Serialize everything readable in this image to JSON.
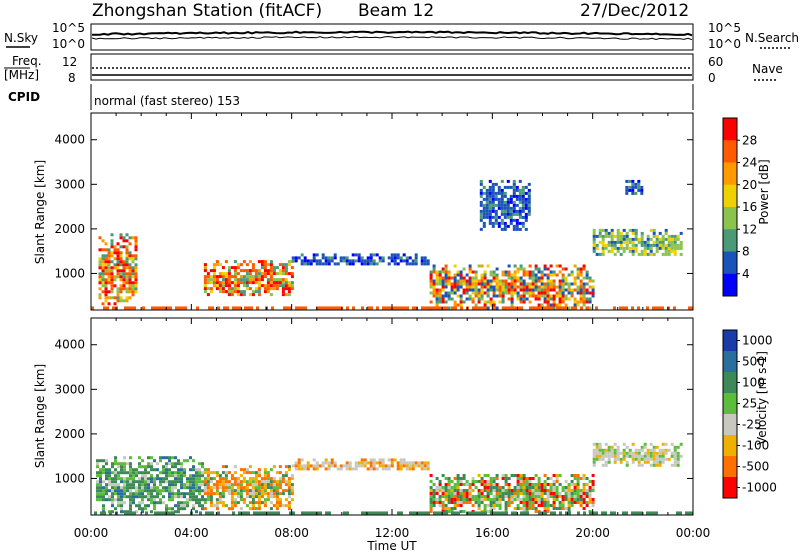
{
  "header": {
    "station": "Zhongshan Station (fitACF)",
    "beam": "Beam 12",
    "date": "27/Dec/2012"
  },
  "noise_panel": {
    "left_label": "N.Sky",
    "right_label": "N.Search",
    "left_ticks": [
      "10^5",
      "10^0"
    ],
    "right_ticks": [
      "10^5",
      "10^0"
    ]
  },
  "freq_panel": {
    "left_label_1": "Freq.",
    "left_label_2": "[MHz]",
    "right_label": "Nave",
    "left_ticks": [
      "12",
      "8"
    ],
    "right_ticks": [
      "60",
      "0"
    ]
  },
  "cpid_panel": {
    "label": "CPID",
    "text": "normal (fast stereo) 153"
  },
  "x_axis": {
    "label": "Time UT",
    "ticks": [
      "00:00",
      "04:00",
      "08:00",
      "12:00",
      "16:00",
      "20:00",
      "00:00"
    ]
  },
  "power_panel": {
    "ylabel": "Slant Range [km]",
    "yticks": [
      "1000",
      "2000",
      "3000",
      "4000"
    ],
    "colorbar_label": "Power [dB]",
    "colorbar_ticks": [
      "4",
      "8",
      "12",
      "16",
      "20",
      "24",
      "28"
    ]
  },
  "velocity_panel": {
    "ylabel": "Slant Range [km]",
    "yticks": [
      "1000",
      "2000",
      "3000",
      "4000"
    ],
    "colorbar_label": "Velocity [m s-1]",
    "colorbar_ticks": [
      "1000",
      "500",
      "100",
      "25",
      "-25",
      "-100",
      "-500",
      "-1000"
    ]
  },
  "chart_data": [
    {
      "type": "heatmap",
      "title": "Power",
      "xlabel": "Time UT",
      "ylabel": "Slant Range [km]",
      "xlim": [
        0,
        24
      ],
      "ylim": [
        180,
        4600
      ],
      "colorbar_label": "Power [dB]",
      "colorbar_ticks": [
        4,
        8,
        12,
        16,
        20,
        24,
        28
      ],
      "colors": [
        "#0000ff",
        "#1a54b8",
        "#4a9a78",
        "#8cc24e",
        "#f0d000",
        "#ff9a00",
        "#ff5a00",
        "#ff0000"
      ],
      "regions": [
        {
          "t": [
            0.3,
            1.8
          ],
          "r": [
            300,
            1900
          ],
          "level": "high"
        },
        {
          "t": [
            4.5,
            8.0
          ],
          "r": [
            500,
            1300
          ],
          "level": "high"
        },
        {
          "t": [
            8.0,
            13.5
          ],
          "r": [
            1200,
            1450
          ],
          "level": "low"
        },
        {
          "t": [
            13.5,
            20.0
          ],
          "r": [
            250,
            1200
          ],
          "level": "mid-high"
        },
        {
          "t": [
            15.5,
            17.5
          ],
          "r": [
            2000,
            3100
          ],
          "level": "low"
        },
        {
          "t": [
            20.0,
            23.5
          ],
          "r": [
            1400,
            2000
          ],
          "level": "mid"
        },
        {
          "t": [
            21.3,
            22.0
          ],
          "r": [
            2800,
            3100
          ],
          "level": "low"
        }
      ]
    },
    {
      "type": "heatmap",
      "title": "Velocity",
      "xlabel": "Time UT",
      "ylabel": "Slant Range [km]",
      "xlim": [
        0,
        24
      ],
      "ylim": [
        180,
        4600
      ],
      "colorbar_label": "Velocity [m s-1]",
      "colorbar_ticks": [
        1000,
        500,
        100,
        25,
        -25,
        -100,
        -500,
        -1000
      ],
      "colors": [
        "#1a3ca8",
        "#2a6e9e",
        "#3d8a58",
        "#5cbc3c",
        "#c8c8c0",
        "#f0b000",
        "#ff7000",
        "#ff0000"
      ],
      "regions": [
        {
          "t": [
            0.2,
            4.5
          ],
          "r": [
            250,
            1500
          ],
          "level": "green"
        },
        {
          "t": [
            4.5,
            8.0
          ],
          "r": [
            300,
            1300
          ],
          "level": "orange"
        },
        {
          "t": [
            8.0,
            13.5
          ],
          "r": [
            1200,
            1450
          ],
          "level": "gray-orange"
        },
        {
          "t": [
            13.5,
            20.0
          ],
          "r": [
            250,
            1100
          ],
          "level": "green-orange"
        },
        {
          "t": [
            20.0,
            23.5
          ],
          "r": [
            1300,
            1800
          ],
          "level": "gray"
        }
      ]
    }
  ]
}
